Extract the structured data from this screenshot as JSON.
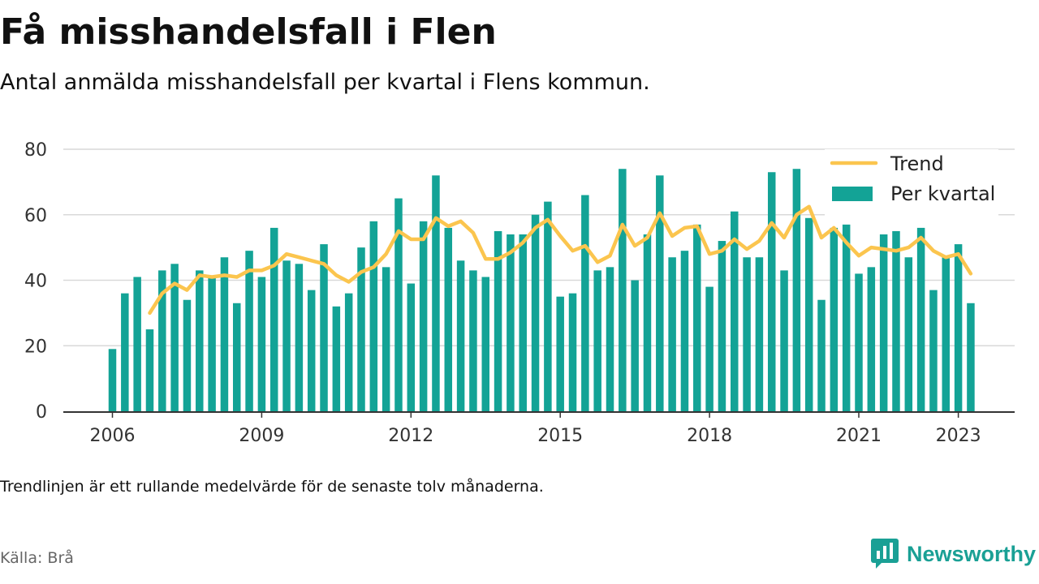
{
  "title": "Få misshandelsfall i Flen",
  "subtitle": "Antal anmälda misshandelsfall per kvartal i Flens kommun.",
  "note": "Trendlinjen är ett rullande medelvärde för de senaste tolv månaderna.",
  "source": "Källa: Brå",
  "brand": {
    "name": "Newsworthy",
    "icon": "newsworthy-logo-icon",
    "color": "#1aa095"
  },
  "colors": {
    "bar": "#13a396",
    "trend": "#fbc54e",
    "grid": "#d9d9d9",
    "axis": "#333333"
  },
  "chart_data": {
    "type": "bar",
    "title": "Få misshandelsfall i Flen",
    "ylim": [
      0,
      80
    ],
    "yticks": [
      0,
      20,
      40,
      60,
      80
    ],
    "xticks": [
      "2006",
      "2009",
      "2012",
      "2015",
      "2018",
      "2021",
      "2023"
    ],
    "grid": true,
    "legend_position": "top-right",
    "categories": [
      "2006 Q1",
      "2006 Q2",
      "2006 Q3",
      "2006 Q4",
      "2007 Q1",
      "2007 Q2",
      "2007 Q3",
      "2007 Q4",
      "2008 Q1",
      "2008 Q2",
      "2008 Q3",
      "2008 Q4",
      "2009 Q1",
      "2009 Q2",
      "2009 Q3",
      "2009 Q4",
      "2010 Q1",
      "2010 Q2",
      "2010 Q3",
      "2010 Q4",
      "2011 Q1",
      "2011 Q2",
      "2011 Q3",
      "2011 Q4",
      "2012 Q1",
      "2012 Q2",
      "2012 Q3",
      "2012 Q4",
      "2013 Q1",
      "2013 Q2",
      "2013 Q3",
      "2013 Q4",
      "2014 Q1",
      "2014 Q2",
      "2014 Q3",
      "2014 Q4",
      "2015 Q1",
      "2015 Q2",
      "2015 Q3",
      "2015 Q4",
      "2016 Q1",
      "2016 Q2",
      "2016 Q3",
      "2016 Q4",
      "2017 Q1",
      "2017 Q2",
      "2017 Q3",
      "2017 Q4",
      "2018 Q1",
      "2018 Q2",
      "2018 Q3",
      "2018 Q4",
      "2019 Q1",
      "2019 Q2",
      "2019 Q3",
      "2019 Q4",
      "2020 Q1",
      "2020 Q2",
      "2020 Q3",
      "2020 Q4",
      "2021 Q1",
      "2021 Q2",
      "2021 Q3",
      "2021 Q4",
      "2022 Q1",
      "2022 Q2",
      "2022 Q3",
      "2022 Q4",
      "2023 Q1",
      "2023 Q2"
    ],
    "series": [
      {
        "name": "Per kvartal",
        "kind": "bar",
        "values": [
          19,
          36,
          41,
          25,
          43,
          45,
          34,
          43,
          41,
          47,
          33,
          49,
          41,
          56,
          46,
          45,
          37,
          51,
          32,
          36,
          50,
          58,
          44,
          65,
          39,
          58,
          72,
          56,
          46,
          43,
          41,
          55,
          54,
          54,
          60,
          64,
          35,
          36,
          66,
          43,
          44,
          74,
          40,
          54,
          72,
          47,
          49,
          57,
          38,
          52,
          61,
          47,
          47,
          73,
          43,
          74,
          59,
          34,
          56,
          57,
          42,
          44,
          54,
          55,
          47,
          56,
          37,
          47,
          51,
          33
        ]
      },
      {
        "name": "Trend",
        "kind": "line",
        "values": [
          null,
          null,
          null,
          30,
          36,
          39,
          37,
          41.5,
          41,
          41.5,
          41,
          43,
          43,
          44.5,
          48,
          47,
          46,
          45,
          41.5,
          39.5,
          42.5,
          44,
          48,
          55,
          52.5,
          52.5,
          59,
          56.5,
          58,
          54.5,
          46.5,
          46.5,
          48.5,
          51.5,
          56,
          58.5,
          53.5,
          49,
          50.5,
          45.5,
          47.5,
          57,
          50.5,
          53,
          60.5,
          53.5,
          56,
          56.5,
          48,
          49,
          52.5,
          49.5,
          52,
          57.5,
          53,
          60,
          62.5,
          53,
          56,
          51.5,
          47.5,
          50,
          49.5,
          49,
          50,
          53,
          49,
          47,
          48,
          42
        ]
      }
    ]
  }
}
